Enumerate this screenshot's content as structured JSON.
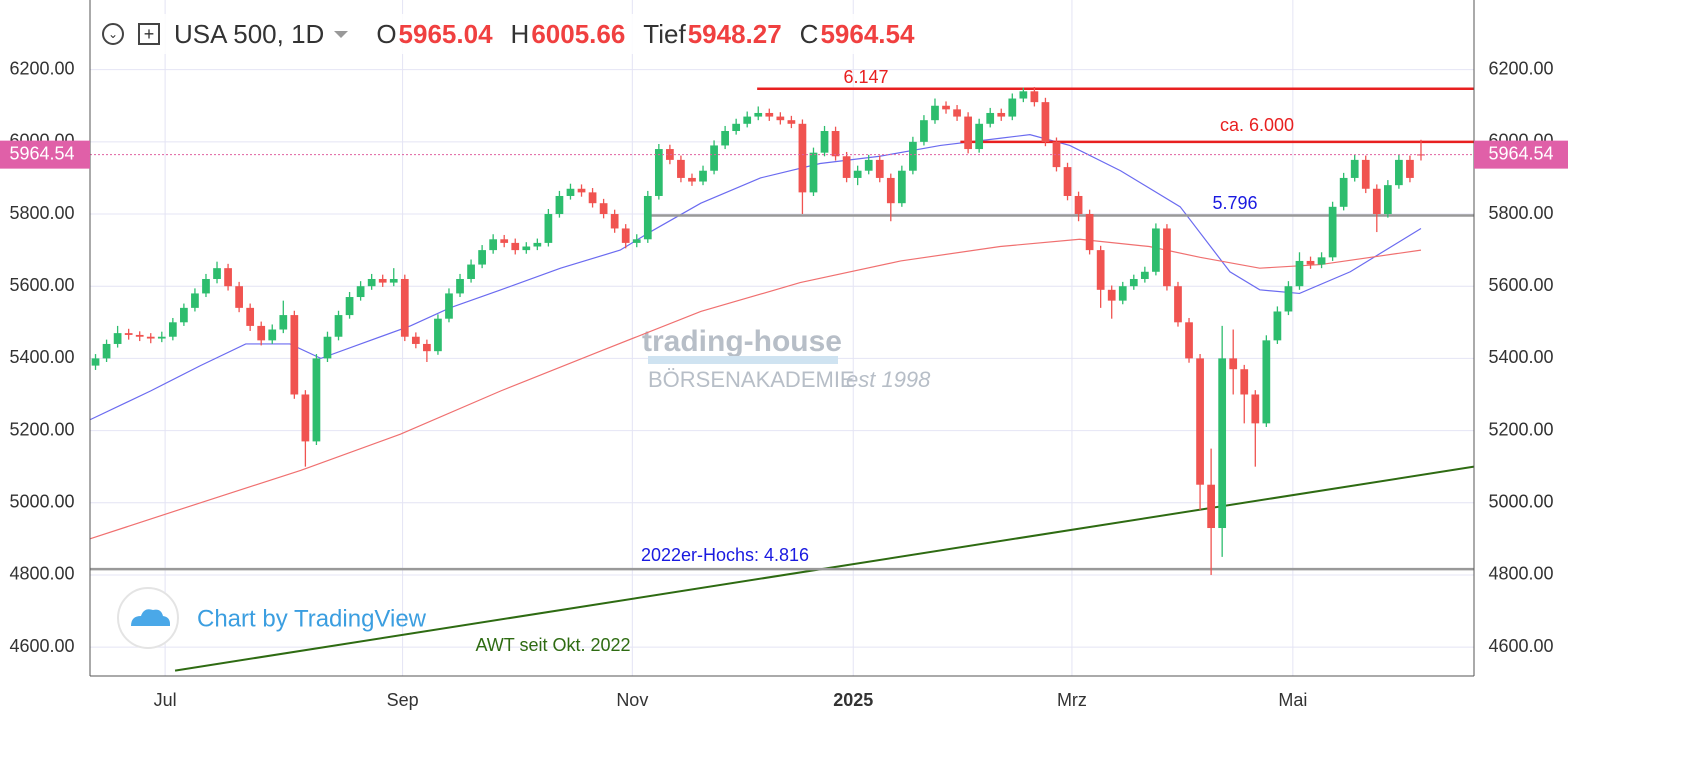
{
  "chart_data": {
    "type": "candlestick",
    "symbol": "USA 500, 1D",
    "ohlc_header": [
      {
        "key": "O",
        "value": 5965.04
      },
      {
        "key": "H",
        "value": 6005.66
      },
      {
        "key": "Tief",
        "value": 5948.27
      },
      {
        "key": "C",
        "value": 5964.54
      }
    ],
    "last_price": 5964.54,
    "up_color": "#2dbd6e",
    "down_color": "#f05350",
    "grid": true,
    "xlim": [
      -0.5,
      124.8
    ],
    "ylim": [
      4520,
      6393
    ],
    "xticks": [
      {
        "value": 6.3,
        "label": "Jul"
      },
      {
        "value": 27.8,
        "label": "Sep"
      },
      {
        "value": 48.6,
        "label": "Nov"
      },
      {
        "value": 68.6,
        "label": "2025"
      },
      {
        "value": 88.4,
        "label": "Mrz"
      },
      {
        "value": 108.4,
        "label": "Mai"
      }
    ],
    "yticks": [
      {
        "value": 4600,
        "label": "4600.00"
      },
      {
        "value": 4800,
        "label": "4800.00"
      },
      {
        "value": 5000,
        "label": "5000.00"
      },
      {
        "value": 5200,
        "label": "5200.00"
      },
      {
        "value": 5400,
        "label": "5400.00"
      },
      {
        "value": 5600,
        "label": "5600.00"
      },
      {
        "value": 5800,
        "label": "5800.00"
      },
      {
        "value": 6000,
        "label": "6000.00"
      },
      {
        "value": 6200,
        "label": "6200.00"
      }
    ],
    "x": [
      0,
      1,
      2,
      3,
      4,
      5,
      6,
      7,
      8,
      9,
      10,
      11,
      12,
      13,
      14,
      15,
      16,
      17,
      18,
      19,
      20,
      21,
      22,
      23,
      24,
      25,
      26,
      27,
      28,
      29,
      30,
      31,
      32,
      33,
      34,
      35,
      36,
      37,
      38,
      39,
      40,
      41,
      42,
      43,
      44,
      45,
      46,
      47,
      48,
      49,
      50,
      51,
      52,
      53,
      54,
      55,
      56,
      57,
      58,
      59,
      60,
      61,
      62,
      63,
      64,
      65,
      66,
      67,
      68,
      69,
      70,
      71,
      72,
      73,
      74,
      75,
      76,
      77,
      78,
      79,
      80,
      81,
      82,
      83,
      84,
      85,
      86,
      87,
      88,
      89,
      90,
      91,
      92,
      93,
      94,
      95,
      96,
      97,
      98,
      99,
      100,
      101,
      102,
      103,
      104,
      105,
      106,
      107,
      108,
      109,
      110,
      111,
      112,
      113,
      114,
      115,
      116,
      117,
      118,
      119,
      120
    ],
    "ohlc": [
      [
        5380,
        5412,
        5368,
        5400
      ],
      [
        5400,
        5452,
        5390,
        5440
      ],
      [
        5440,
        5490,
        5430,
        5470
      ],
      [
        5470,
        5482,
        5452,
        5465
      ],
      [
        5465,
        5475,
        5448,
        5460
      ],
      [
        5460,
        5470,
        5442,
        5455
      ],
      [
        5455,
        5474,
        5445,
        5460
      ],
      [
        5460,
        5512,
        5450,
        5500
      ],
      [
        5500,
        5552,
        5490,
        5540
      ],
      [
        5540,
        5594,
        5530,
        5580
      ],
      [
        5580,
        5634,
        5570,
        5620
      ],
      [
        5620,
        5668,
        5608,
        5650
      ],
      [
        5650,
        5662,
        5588,
        5600
      ],
      [
        5600,
        5612,
        5528,
        5540
      ],
      [
        5540,
        5552,
        5476,
        5490
      ],
      [
        5490,
        5502,
        5436,
        5450
      ],
      [
        5450,
        5494,
        5440,
        5480
      ],
      [
        5480,
        5560,
        5470,
        5520
      ],
      [
        5520,
        5532,
        5288,
        5300
      ],
      [
        5300,
        5312,
        5100,
        5170
      ],
      [
        5170,
        5412,
        5160,
        5400
      ],
      [
        5400,
        5474,
        5390,
        5460
      ],
      [
        5460,
        5532,
        5450,
        5520
      ],
      [
        5520,
        5584,
        5510,
        5570
      ],
      [
        5570,
        5614,
        5560,
        5600
      ],
      [
        5600,
        5634,
        5590,
        5620
      ],
      [
        5620,
        5632,
        5598,
        5610
      ],
      [
        5610,
        5650,
        5600,
        5620
      ],
      [
        5620,
        5632,
        5448,
        5460
      ],
      [
        5460,
        5472,
        5428,
        5440
      ],
      [
        5440,
        5452,
        5390,
        5420
      ],
      [
        5420,
        5522,
        5410,
        5510
      ],
      [
        5510,
        5594,
        5500,
        5580
      ],
      [
        5580,
        5634,
        5570,
        5620
      ],
      [
        5620,
        5674,
        5610,
        5660
      ],
      [
        5660,
        5714,
        5650,
        5700
      ],
      [
        5700,
        5744,
        5690,
        5730
      ],
      [
        5730,
        5742,
        5708,
        5720
      ],
      [
        5720,
        5732,
        5688,
        5700
      ],
      [
        5700,
        5722,
        5690,
        5710
      ],
      [
        5710,
        5732,
        5700,
        5720
      ],
      [
        5720,
        5814,
        5710,
        5800
      ],
      [
        5800,
        5864,
        5790,
        5850
      ],
      [
        5850,
        5884,
        5840,
        5870
      ],
      [
        5870,
        5882,
        5848,
        5860
      ],
      [
        5860,
        5872,
        5818,
        5830
      ],
      [
        5830,
        5842,
        5788,
        5800
      ],
      [
        5800,
        5812,
        5748,
        5760
      ],
      [
        5760,
        5772,
        5705,
        5720
      ],
      [
        5720,
        5744,
        5708,
        5730
      ],
      [
        5730,
        5864,
        5720,
        5850
      ],
      [
        5850,
        5994,
        5840,
        5980
      ],
      [
        5980,
        5992,
        5938,
        5950
      ],
      [
        5950,
        5962,
        5888,
        5900
      ],
      [
        5900,
        5912,
        5878,
        5890
      ],
      [
        5890,
        5934,
        5880,
        5920
      ],
      [
        5920,
        6004,
        5910,
        5990
      ],
      [
        5990,
        6044,
        5980,
        6030
      ],
      [
        6030,
        6064,
        6020,
        6050
      ],
      [
        6050,
        6084,
        6040,
        6070
      ],
      [
        6070,
        6098,
        6060,
        6080
      ],
      [
        6080,
        6092,
        6058,
        6070
      ],
      [
        6070,
        6082,
        6048,
        6060
      ],
      [
        6060,
        6072,
        6038,
        6050
      ],
      [
        6050,
        6062,
        5800,
        5860
      ],
      [
        5860,
        5984,
        5850,
        5970
      ],
      [
        5970,
        6044,
        5960,
        6030
      ],
      [
        6030,
        6042,
        5948,
        5960
      ],
      [
        5960,
        5972,
        5888,
        5900
      ],
      [
        5900,
        5934,
        5880,
        5920
      ],
      [
        5920,
        5964,
        5910,
        5950
      ],
      [
        5950,
        5962,
        5888,
        5900
      ],
      [
        5900,
        5912,
        5780,
        5830
      ],
      [
        5830,
        5934,
        5820,
        5920
      ],
      [
        5920,
        6014,
        5910,
        6000
      ],
      [
        6000,
        6074,
        5990,
        6060
      ],
      [
        6060,
        6120,
        6050,
        6100
      ],
      [
        6100,
        6112,
        6078,
        6090
      ],
      [
        6090,
        6102,
        6058,
        6070
      ],
      [
        6070,
        6082,
        5968,
        5980
      ],
      [
        5980,
        6064,
        5970,
        6050
      ],
      [
        6050,
        6094,
        6040,
        6080
      ],
      [
        6080,
        6092,
        6058,
        6070
      ],
      [
        6070,
        6134,
        6060,
        6120
      ],
      [
        6120,
        6150,
        6110,
        6140
      ],
      [
        6140,
        6152,
        6098,
        6110
      ],
      [
        6110,
        6122,
        5988,
        6000
      ],
      [
        6000,
        6012,
        5918,
        5930
      ],
      [
        5930,
        5942,
        5838,
        5850
      ],
      [
        5850,
        5862,
        5780,
        5800
      ],
      [
        5800,
        5812,
        5688,
        5700
      ],
      [
        5700,
        5712,
        5540,
        5590
      ],
      [
        5590,
        5602,
        5510,
        5560
      ],
      [
        5560,
        5612,
        5550,
        5600
      ],
      [
        5600,
        5632,
        5590,
        5620
      ],
      [
        5620,
        5654,
        5610,
        5640
      ],
      [
        5640,
        5774,
        5630,
        5760
      ],
      [
        5760,
        5772,
        5588,
        5600
      ],
      [
        5600,
        5612,
        5488,
        5500
      ],
      [
        5500,
        5512,
        5388,
        5400
      ],
      [
        5400,
        5412,
        4980,
        5050
      ],
      [
        5050,
        5150,
        4800,
        4930
      ],
      [
        4930,
        5490,
        4850,
        5400
      ],
      [
        5400,
        5480,
        5300,
        5370
      ],
      [
        5370,
        5382,
        5220,
        5300
      ],
      [
        5300,
        5312,
        5100,
        5220
      ],
      [
        5220,
        5464,
        5210,
        5450
      ],
      [
        5450,
        5544,
        5440,
        5530
      ],
      [
        5530,
        5614,
        5520,
        5600
      ],
      [
        5600,
        5694,
        5590,
        5670
      ],
      [
        5670,
        5682,
        5648,
        5660
      ],
      [
        5660,
        5694,
        5650,
        5680
      ],
      [
        5680,
        5834,
        5670,
        5820
      ],
      [
        5820,
        5914,
        5810,
        5900
      ],
      [
        5900,
        5964,
        5890,
        5950
      ],
      [
        5950,
        5962,
        5858,
        5870
      ],
      [
        5870,
        5882,
        5750,
        5800
      ],
      [
        5800,
        5894,
        5790,
        5880
      ],
      [
        5880,
        5964,
        5870,
        5950
      ],
      [
        5950,
        5962,
        5888,
        5900
      ],
      [
        5965.04,
        6005.66,
        5948.27,
        5964.54
      ]
    ],
    "moving_averages": [
      {
        "color": "#6b6bf0",
        "x": [
          -0.5,
          5,
          9.5,
          13.6,
          17.6,
          20.4,
          24,
          28.5,
          32.1,
          36.7,
          42.1,
          47.5,
          50.2,
          54.8,
          60.2,
          65.6,
          71,
          76.5,
          81.9,
          84.6,
          88.2,
          92.8,
          98.2,
          102.7,
          105.4,
          109,
          113.6,
          120
        ],
        "values": [
          5230,
          5310,
          5380,
          5440,
          5440,
          5400,
          5440,
          5490,
          5540,
          5590,
          5650,
          5700,
          5750,
          5830,
          5900,
          5940,
          5960,
          5990,
          6010,
          6020,
          5990,
          5920,
          5820,
          5640,
          5590,
          5580,
          5640,
          5760
        ]
      },
      {
        "color": "#f07070",
        "x": [
          -0.5,
          9.5,
          18.6,
          27.6,
          36.7,
          45.7,
          54.8,
          63.8,
          72.9,
          81.9,
          89.1,
          95.4,
          100,
          105.4,
          110.9,
          120
        ],
        "values": [
          4900,
          5000,
          5090,
          5190,
          5310,
          5420,
          5530,
          5610,
          5670,
          5710,
          5730,
          5710,
          5680,
          5650,
          5660,
          5700
        ]
      }
    ],
    "levels": [
      {
        "value": 6147,
        "start": 59.9,
        "color": "#e82020",
        "label": "6.147",
        "label_color": "#e82020"
      },
      {
        "value": 6000,
        "start": 78.3,
        "color": "#e82020",
        "label": "ca. 6.000",
        "label_color": "#e82020"
      },
      {
        "value": 5796,
        "start": 50.2,
        "color": "#999999",
        "label": "5.796",
        "label_color": "#1a1ae0"
      },
      {
        "value": 4816,
        "start": -0.5,
        "color": "#999999",
        "label": "2022er-Hochs: 4.816",
        "label_color": "#1a1ae0"
      }
    ],
    "trendline": {
      "x": [
        7.2,
        124.8
      ],
      "values": [
        4535,
        5100
      ],
      "color": "#2e6b12",
      "label": "AWT seit Okt. 2022"
    },
    "watermark": {
      "title": "trading-house",
      "subtitle": "BÖRSENAKADEMIE",
      "since": "est 1998"
    },
    "credit": "Chart by TradingView"
  }
}
